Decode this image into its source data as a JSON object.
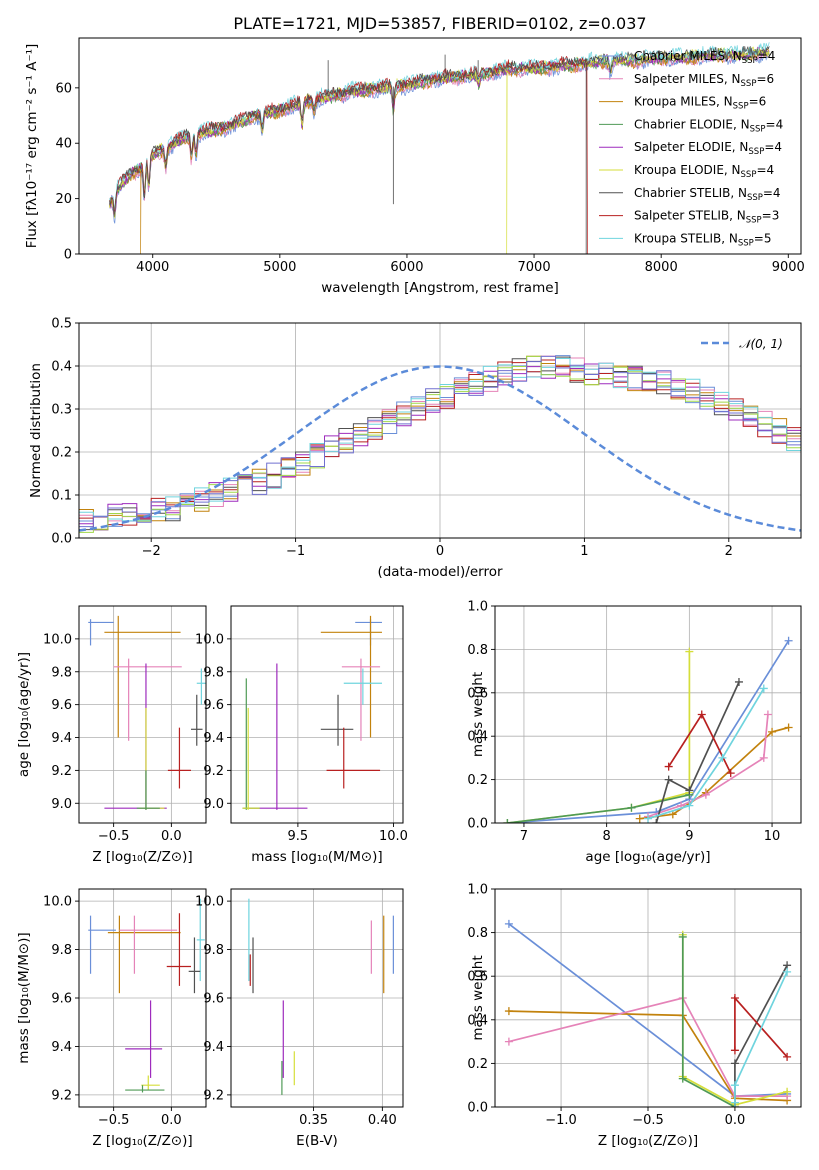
{
  "chart_data": [
    {
      "id": "spectrum",
      "type": "line",
      "title": "PLATE=1721, MJD=53857, FIBERID=0102, z=0.037",
      "xlabel": "wavelength [Angstrom, rest frame]",
      "ylabel": "Flux [fλ10⁻¹⁷ erg cm⁻² s⁻¹ A⁻¹]",
      "xlim": [
        3420,
        9100
      ],
      "ylim": [
        0,
        78
      ],
      "xticks": [
        4000,
        5000,
        6000,
        7000,
        8000,
        9000
      ],
      "yticks": [
        0,
        20,
        40,
        60
      ],
      "grid": false,
      "legend_position": "right",
      "continuum": {
        "x": [
          3660,
          3700,
          3800,
          3900,
          4000,
          4100,
          4200,
          4300,
          4400,
          4500,
          4600,
          4700,
          4800,
          4900,
          5000,
          5200,
          5400,
          5600,
          5800,
          6000,
          6200,
          6400,
          6600,
          6800,
          7000,
          7200,
          7400,
          7600,
          7800,
          8000,
          8200,
          8400,
          8600,
          8850
        ],
        "y": [
          18,
          22,
          28,
          31,
          36,
          38,
          41,
          43,
          44,
          45,
          46,
          48,
          50,
          51,
          52,
          55,
          57,
          59,
          60,
          61,
          63,
          64,
          65,
          67,
          67,
          68,
          69,
          70,
          70,
          71,
          71,
          72,
          72,
          73
        ]
      },
      "absorption_lines": [
        {
          "x": 3700,
          "depth": 8
        },
        {
          "x": 3934,
          "depth": 12
        },
        {
          "x": 3969,
          "depth": 10
        },
        {
          "x": 4102,
          "depth": 6
        },
        {
          "x": 4305,
          "depth": 8
        },
        {
          "x": 4340,
          "depth": 7
        },
        {
          "x": 4861,
          "depth": 6
        },
        {
          "x": 5175,
          "depth": 8
        },
        {
          "x": 5270,
          "depth": 4
        },
        {
          "x": 5893,
          "depth": 8
        },
        {
          "x": 6563,
          "depth": 3
        },
        {
          "x": 7600,
          "depth": 4
        }
      ],
      "artifacts": [
        {
          "x": 5380,
          "y": 70
        },
        {
          "x": 5893,
          "y": 18
        },
        {
          "x": 6300,
          "y": 72
        },
        {
          "x": 6560,
          "y": 70
        },
        {
          "x": 7410,
          "y": 0
        }
      ],
      "dropouts": [
        {
          "x": 3905,
          "series": "Kroupa MILES"
        },
        {
          "x": 6785,
          "series": "Kroupa ELODIE"
        },
        {
          "x": 7420,
          "series": "Salpeter STELIB"
        }
      ],
      "series": [
        {
          "name": "Chabrier MILES",
          "nssp": 4,
          "color": "#6a8fd8"
        },
        {
          "name": "Salpeter MILES",
          "nssp": 6,
          "color": "#e583b8"
        },
        {
          "name": "Kroupa MILES",
          "nssp": 6,
          "color": "#c2820d"
        },
        {
          "name": "Chabrier ELODIE",
          "nssp": 4,
          "color": "#4f9a56"
        },
        {
          "name": "Salpeter ELODIE",
          "nssp": 4,
          "color": "#9e2bbd"
        },
        {
          "name": "Kroupa ELODIE",
          "nssp": 4,
          "color": "#d5de3a"
        },
        {
          "name": "Chabrier STELIB",
          "nssp": 4,
          "color": "#505050"
        },
        {
          "name": "Salpeter STELIB",
          "nssp": 3,
          "color": "#b82020"
        },
        {
          "name": "Kroupa STELIB",
          "nssp": 5,
          "color": "#6fd4de"
        }
      ]
    },
    {
      "id": "residuals",
      "type": "histogram",
      "xlabel": "(data-model)/error",
      "ylabel": "Normed distribution",
      "xlim": [
        -2.5,
        2.5
      ],
      "ylim": [
        0,
        0.5
      ],
      "xticks": [
        -2,
        -1,
        0,
        1,
        2
      ],
      "yticks": [
        0.0,
        0.1,
        0.2,
        0.3,
        0.4,
        0.5
      ],
      "grid": true,
      "bin_width": 0.1,
      "legend": "𝒩(0, 1)",
      "legend_position": "top-right",
      "gauss_color": "#5b8bd9",
      "series_colors": [
        "#6a8fd8",
        "#e583b8",
        "#c2820d",
        "#505050",
        "#9e2bbd",
        "#b82020",
        "#6fd4de",
        "#a0d84a",
        "#7070d0"
      ],
      "base_heights": [
        0.04,
        0.045,
        0.05,
        0.055,
        0.06,
        0.065,
        0.07,
        0.08,
        0.09,
        0.1,
        0.11,
        0.12,
        0.13,
        0.145,
        0.16,
        0.175,
        0.19,
        0.21,
        0.225,
        0.24,
        0.255,
        0.27,
        0.29,
        0.3,
        0.32,
        0.33,
        0.345,
        0.36,
        0.37,
        0.38,
        0.39,
        0.4,
        0.4,
        0.395,
        0.39,
        0.385,
        0.38,
        0.375,
        0.37,
        0.365,
        0.36,
        0.35,
        0.34,
        0.325,
        0.31,
        0.295,
        0.28,
        0.265,
        0.25,
        0.23
      ]
    },
    {
      "id": "age_vs_Z",
      "type": "scatter",
      "xlabel": "Z [log₁₀(Z/Z⊙)]",
      "ylabel": "age  [log₁₀(age/yr)]",
      "xlim": [
        -0.8,
        0.3
      ],
      "ylim": [
        8.88,
        10.2
      ],
      "xticks": [
        -0.5,
        0.0
      ],
      "yticks": [
        9.0,
        9.2,
        9.4,
        9.6,
        9.8,
        10.0
      ],
      "grid": true,
      "points": [
        {
          "color": "#6a8fd8",
          "x": -0.7,
          "xlo": -0.72,
          "xhi": -0.5,
          "y": 10.1,
          "ylo": 9.96,
          "yhi": 10.12
        },
        {
          "color": "#c2820d",
          "x": -0.46,
          "xlo": -0.58,
          "xhi": 0.08,
          "y": 10.04,
          "ylo": 9.4,
          "yhi": 10.14
        },
        {
          "color": "#e583b8",
          "x": -0.37,
          "xlo": -0.5,
          "xhi": 0.09,
          "y": 9.83,
          "ylo": 9.38,
          "yhi": 9.88
        },
        {
          "color": "#9e2bbd",
          "x": -0.22,
          "xlo": -0.58,
          "xhi": -0.04,
          "y": 8.97,
          "ylo": 8.96,
          "yhi": 9.85
        },
        {
          "color": "#d5de3a",
          "x": -0.22,
          "xlo": -0.28,
          "xhi": -0.06,
          "y": 8.97,
          "ylo": 8.96,
          "yhi": 9.58
        },
        {
          "color": "#4f9a56",
          "x": -0.22,
          "xlo": -0.3,
          "xhi": -0.1,
          "y": 8.97,
          "ylo": 8.96,
          "yhi": 9.2
        },
        {
          "color": "#6fd4de",
          "x": 0.26,
          "xlo": 0.22,
          "xhi": 0.3,
          "y": 9.73,
          "ylo": 9.6,
          "yhi": 9.82
        },
        {
          "color": "#505050",
          "x": 0.22,
          "xlo": 0.17,
          "xhi": 0.27,
          "y": 9.45,
          "ylo": 9.35,
          "yhi": 9.66
        },
        {
          "color": "#b82020",
          "x": 0.07,
          "xlo": -0.03,
          "xhi": 0.17,
          "y": 9.2,
          "ylo": 9.09,
          "yhi": 9.46
        }
      ]
    },
    {
      "id": "age_vs_mass",
      "type": "scatter",
      "xlabel": "mass [log₁₀(M/M⊙)]",
      "ylabel": "",
      "xlim": [
        9.15,
        10.05
      ],
      "ylim": [
        8.88,
        10.2
      ],
      "xticks": [
        9.5,
        10.0
      ],
      "yticks": [
        9.0,
        9.2,
        9.4,
        9.6,
        9.8,
        10.0
      ],
      "grid": true,
      "points": [
        {
          "color": "#6a8fd8",
          "x": 9.88,
          "xlo": 9.8,
          "xhi": 9.94,
          "y": 10.1,
          "ylo": 9.96,
          "yhi": 10.12
        },
        {
          "color": "#c2820d",
          "x": 9.88,
          "xlo": 9.62,
          "xhi": 9.94,
          "y": 10.04,
          "ylo": 9.4,
          "yhi": 10.14
        },
        {
          "color": "#e583b8",
          "x": 9.83,
          "xlo": 9.73,
          "xhi": 9.93,
          "y": 9.83,
          "ylo": 9.38,
          "yhi": 9.88
        },
        {
          "color": "#6fd4de",
          "x": 9.84,
          "xlo": 9.74,
          "xhi": 9.94,
          "y": 9.73,
          "ylo": 9.6,
          "yhi": 9.82
        },
        {
          "color": "#505050",
          "x": 9.71,
          "xlo": 9.62,
          "xhi": 9.79,
          "y": 9.45,
          "ylo": 9.35,
          "yhi": 9.66
        },
        {
          "color": "#b82020",
          "x": 9.74,
          "xlo": 9.65,
          "xhi": 9.93,
          "y": 9.2,
          "ylo": 9.09,
          "yhi": 9.46
        },
        {
          "color": "#9e2bbd",
          "x": 9.39,
          "xlo": 9.22,
          "xhi": 9.55,
          "y": 8.97,
          "ylo": 8.96,
          "yhi": 9.85
        },
        {
          "color": "#4f9a56",
          "x": 9.23,
          "xlo": 9.21,
          "xhi": 9.3,
          "y": 8.97,
          "ylo": 8.96,
          "yhi": 9.76
        },
        {
          "color": "#d5de3a",
          "x": 9.24,
          "xlo": 9.21,
          "xhi": 9.3,
          "y": 8.97,
          "ylo": 8.96,
          "yhi": 9.58
        }
      ]
    },
    {
      "id": "massweight_vs_age",
      "type": "line",
      "xlabel": "age  [log₁₀(age/yr)]",
      "ylabel": "mass weight",
      "xlim": [
        6.65,
        10.35
      ],
      "ylim": [
        0,
        1
      ],
      "xticks": [
        7,
        8,
        9,
        10
      ],
      "yticks": [
        0.0,
        0.2,
        0.4,
        0.6,
        0.8,
        1.0
      ],
      "grid": true,
      "series": [
        {
          "color": "#6a8fd8",
          "x": [
            6.8,
            8.6,
            9.0,
            10.2
          ],
          "y": [
            0.0,
            0.05,
            0.11,
            0.84
          ]
        },
        {
          "color": "#c2820d",
          "x": [
            8.4,
            8.8,
            9.2,
            10.0,
            10.2
          ],
          "y": [
            0.02,
            0.04,
            0.14,
            0.42,
            0.44
          ]
        },
        {
          "color": "#e583b8",
          "x": [
            8.5,
            8.9,
            9.2,
            9.9,
            9.95
          ],
          "y": [
            0.03,
            0.08,
            0.13,
            0.3,
            0.5
          ]
        },
        {
          "color": "#d5de3a",
          "x": [
            6.8,
            8.3,
            9.0,
            9.0
          ],
          "y": [
            0.0,
            0.07,
            0.14,
            0.79
          ]
        },
        {
          "color": "#4f9a56",
          "x": [
            6.8,
            8.3,
            9.0
          ],
          "y": [
            0.0,
            0.07,
            0.13
          ]
        },
        {
          "color": "#505050",
          "x": [
            8.6,
            8.75,
            9.0,
            9.6
          ],
          "y": [
            0.0,
            0.2,
            0.15,
            0.65
          ]
        },
        {
          "color": "#b82020",
          "x": [
            8.75,
            9.15,
            9.5
          ],
          "y": [
            0.26,
            0.5,
            0.23
          ]
        },
        {
          "color": "#6fd4de",
          "x": [
            8.5,
            9.0,
            9.4,
            9.9
          ],
          "y": [
            0.02,
            0.08,
            0.3,
            0.62
          ]
        }
      ]
    },
    {
      "id": "mass_vs_Z",
      "type": "scatter",
      "xlabel": "Z [log₁₀(Z/Z⊙)]",
      "ylabel": "mass [log₁₀(M/M⊙)]",
      "xlim": [
        -0.8,
        0.3
      ],
      "ylim": [
        9.15,
        10.05
      ],
      "xticks": [
        -0.5,
        0.0
      ],
      "yticks": [
        9.2,
        9.4,
        9.6,
        9.8,
        10.0
      ],
      "grid": true,
      "points": [
        {
          "color": "#6a8fd8",
          "x": -0.7,
          "xlo": -0.72,
          "xhi": -0.48,
          "y": 9.88,
          "ylo": 9.7,
          "yhi": 9.94
        },
        {
          "color": "#c2820d",
          "x": -0.45,
          "xlo": -0.55,
          "xhi": 0.08,
          "y": 9.87,
          "ylo": 9.62,
          "yhi": 9.94
        },
        {
          "color": "#e583b8",
          "x": -0.32,
          "xlo": -0.45,
          "xhi": 0.05,
          "y": 9.88,
          "ylo": 9.7,
          "yhi": 9.94
        },
        {
          "color": "#9e2bbd",
          "x": -0.18,
          "xlo": -0.4,
          "xhi": -0.08,
          "y": 9.39,
          "ylo": 9.27,
          "yhi": 9.59
        },
        {
          "color": "#d5de3a",
          "x": -0.2,
          "xlo": -0.26,
          "xhi": -0.1,
          "y": 9.24,
          "ylo": 9.22,
          "yhi": 9.28
        },
        {
          "color": "#4f9a56",
          "x": -0.25,
          "xlo": -0.4,
          "xhi": -0.06,
          "y": 9.22,
          "ylo": 9.21,
          "yhi": 9.24
        },
        {
          "color": "#6fd4de",
          "x": 0.25,
          "xlo": 0.22,
          "xhi": 0.29,
          "y": 9.84,
          "ylo": 9.67,
          "yhi": 10.01
        },
        {
          "color": "#505050",
          "x": 0.2,
          "xlo": 0.15,
          "xhi": 0.25,
          "y": 9.71,
          "ylo": 9.62,
          "yhi": 9.85
        },
        {
          "color": "#b82020",
          "x": 0.07,
          "xlo": -0.04,
          "xhi": 0.17,
          "y": 9.73,
          "ylo": 9.65,
          "yhi": 9.95
        }
      ]
    },
    {
      "id": "mass_vs_ebv",
      "type": "scatter",
      "xlabel": "E(B-V)",
      "ylabel": "",
      "xlim": [
        0.29,
        0.415
      ],
      "ylim": [
        9.15,
        10.05
      ],
      "xticks": [
        0.35,
        0.4
      ],
      "yticks": [
        9.2,
        9.4,
        9.6,
        9.8,
        10.0
      ],
      "grid": true,
      "points": [
        {
          "color": "#6a8fd8",
          "x": 0.408,
          "ylo": 9.7,
          "yhi": 9.94,
          "y": 9.82
        },
        {
          "color": "#c2820d",
          "x": 0.401,
          "ylo": 9.62,
          "yhi": 9.94,
          "y": 9.78
        },
        {
          "color": "#e583b8",
          "x": 0.392,
          "ylo": 9.7,
          "yhi": 9.92,
          "y": 9.81
        },
        {
          "color": "#6fd4de",
          "x": 0.303,
          "ylo": 9.67,
          "yhi": 10.01,
          "y": 9.84
        },
        {
          "color": "#505050",
          "x": 0.306,
          "ylo": 9.62,
          "yhi": 9.85,
          "y": 9.72
        },
        {
          "color": "#b82020",
          "x": 0.304,
          "ylo": 9.65,
          "yhi": 9.78,
          "y": 9.72
        },
        {
          "color": "#9e2bbd",
          "x": 0.328,
          "ylo": 9.27,
          "yhi": 9.59,
          "y": 9.39
        },
        {
          "color": "#d5de3a",
          "x": 0.336,
          "ylo": 9.24,
          "yhi": 9.38,
          "y": 9.3
        },
        {
          "color": "#4f9a56",
          "x": 0.327,
          "ylo": 9.2,
          "yhi": 9.34,
          "y": 9.26
        }
      ]
    },
    {
      "id": "massweight_vs_Z",
      "type": "line",
      "xlabel": "Z [log₁₀(Z/Z⊙)]",
      "ylabel": "mass weight",
      "xlim": [
        -1.38,
        0.38
      ],
      "ylim": [
        0,
        1
      ],
      "xticks": [
        -1.0,
        -0.5,
        0.0,
        0.5
      ],
      "yticks": [
        0.0,
        0.2,
        0.4,
        0.6,
        0.8,
        1.0
      ],
      "grid": true,
      "series": [
        {
          "color": "#6a8fd8",
          "x": [
            -1.3,
            0.0,
            0.3
          ],
          "y": [
            0.84,
            0.05,
            0.06
          ]
        },
        {
          "color": "#c2820d",
          "x": [
            -1.3,
            -0.3,
            0.0,
            0.3
          ],
          "y": [
            0.44,
            0.42,
            0.04,
            0.03
          ]
        },
        {
          "color": "#e583b8",
          "x": [
            -1.3,
            -0.3,
            0.0,
            0.3
          ],
          "y": [
            0.3,
            0.5,
            0.05,
            0.05
          ]
        },
        {
          "color": "#d5de3a",
          "x": [
            -0.3,
            -0.3,
            0.0,
            0.3
          ],
          "y": [
            0.79,
            0.14,
            0.01,
            0.07
          ]
        },
        {
          "color": "#4f9a56",
          "x": [
            -0.3,
            -0.3,
            0.0
          ],
          "y": [
            0.78,
            0.13,
            0.0
          ]
        },
        {
          "color": "#505050",
          "x": [
            0.0,
            0.0,
            0.3
          ],
          "y": [
            0.0,
            0.2,
            0.65
          ]
        },
        {
          "color": "#b82020",
          "x": [
            0.0,
            0.0,
            0.3
          ],
          "y": [
            0.26,
            0.5,
            0.23
          ]
        },
        {
          "color": "#6fd4de",
          "x": [
            0.0,
            0.0,
            0.3
          ],
          "y": [
            0.02,
            0.1,
            0.62
          ]
        }
      ]
    }
  ]
}
